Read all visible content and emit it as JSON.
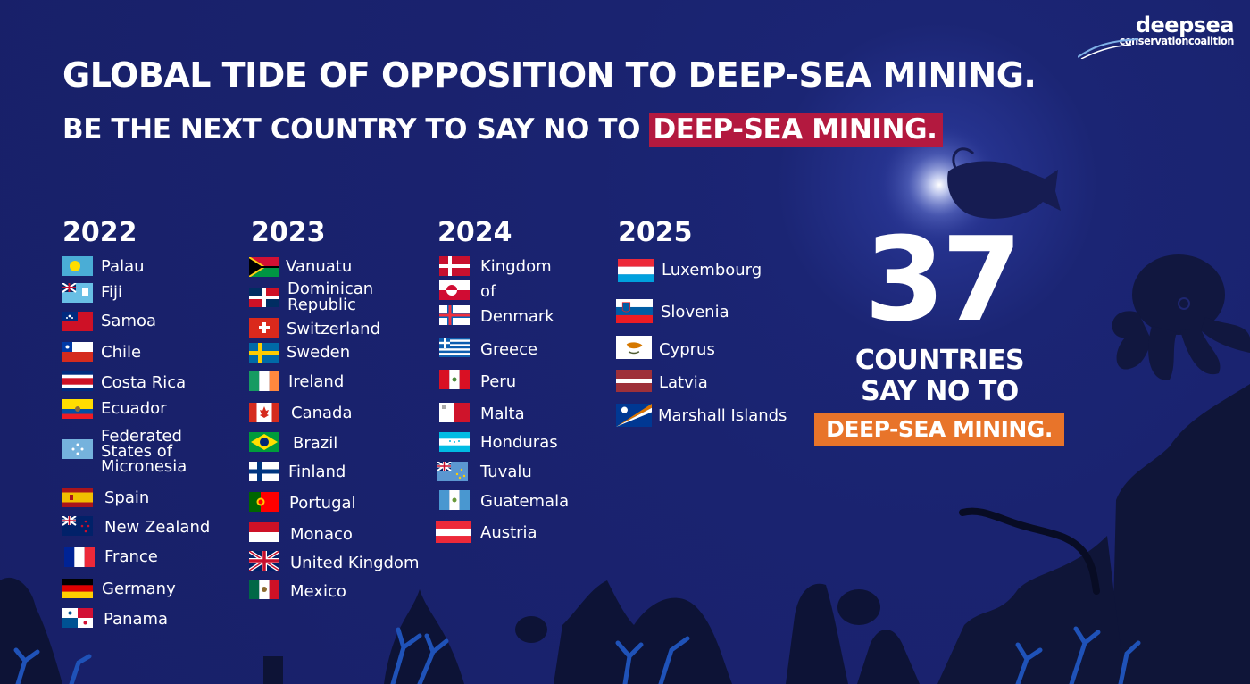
{
  "logo": {
    "line1": "deepsea",
    "line2": "conservationcoalition"
  },
  "title": "GLOBAL TIDE OF OPPOSITION TO DEEP-SEA MINING.",
  "subtitle": {
    "prefix": "BE THE NEXT COUNTRY TO SAY NO TO ",
    "highlight": "DEEP-SEA MINING."
  },
  "colors": {
    "background": "#1a2370",
    "highlight_red": "#b3193f",
    "highlight_orange": "#e8742a",
    "text": "#ffffff"
  },
  "years": [
    "2022",
    "2023",
    "2024",
    "2025"
  ],
  "countries": {
    "y2022": [
      {
        "label": "Palau",
        "flag": "palau-flag-icon"
      },
      {
        "label": "Fiji",
        "flag": "fiji-flag-icon"
      },
      {
        "label": "Samoa",
        "flag": "samoa-flag-icon"
      },
      {
        "label": "Chile",
        "flag": "chile-flag-icon"
      },
      {
        "label": "Costa Rica",
        "flag": "costa-rica-flag-icon"
      },
      {
        "label": "Ecuador",
        "flag": "ecuador-flag-icon"
      },
      {
        "label": "Federated\nStates of\nMicronesia",
        "flag": "micronesia-flag-icon"
      },
      {
        "label": "Spain",
        "flag": "spain-flag-icon"
      },
      {
        "label": "New Zealand",
        "flag": "new-zealand-flag-icon"
      },
      {
        "label": "France",
        "flag": "france-flag-icon"
      },
      {
        "label": "Germany",
        "flag": "germany-flag-icon"
      },
      {
        "label": "Panama",
        "flag": "panama-flag-icon"
      }
    ],
    "y2023": [
      {
        "label": "Vanuatu",
        "flag": "vanuatu-flag-icon"
      },
      {
        "label": "Dominican\nRepublic",
        "flag": "dominican-republic-flag-icon"
      },
      {
        "label": "Switzerland",
        "flag": "switzerland-flag-icon"
      },
      {
        "label": "Sweden",
        "flag": "sweden-flag-icon"
      },
      {
        "label": "Ireland",
        "flag": "ireland-flag-icon"
      },
      {
        "label": "Canada",
        "flag": "canada-flag-icon"
      },
      {
        "label": "Brazil",
        "flag": "brazil-flag-icon"
      },
      {
        "label": "Finland",
        "flag": "finland-flag-icon"
      },
      {
        "label": "Portugal",
        "flag": "portugal-flag-icon"
      },
      {
        "label": "Monaco",
        "flag": "monaco-flag-icon"
      },
      {
        "label": "United Kingdom",
        "flag": "united-kingdom-flag-icon"
      },
      {
        "label": "Mexico",
        "flag": "mexico-flag-icon"
      }
    ],
    "y2024": [
      {
        "label": "Kingdom\n\nof\n\nDenmark",
        "flag": "denmark-flags-icon"
      },
      {
        "label": "Greece",
        "flag": "greece-flag-icon"
      },
      {
        "label": "Peru",
        "flag": "peru-flag-icon"
      },
      {
        "label": "Malta",
        "flag": "malta-flag-icon"
      },
      {
        "label": "Honduras",
        "flag": "honduras-flag-icon"
      },
      {
        "label": "Tuvalu",
        "flag": "tuvalu-flag-icon"
      },
      {
        "label": "Guatemala",
        "flag": "guatemala-flag-icon"
      },
      {
        "label": "Austria",
        "flag": "austria-flag-icon"
      }
    ],
    "y2025": [
      {
        "label": "Luxembourg",
        "flag": "luxembourg-flag-icon"
      },
      {
        "label": "Slovenia",
        "flag": "slovenia-flag-icon"
      },
      {
        "label": "Cyprus",
        "flag": "cyprus-flag-icon"
      },
      {
        "label": "Latvia",
        "flag": "latvia-flag-icon"
      },
      {
        "label": "Marshall Islands",
        "flag": "marshall-islands-flag-icon"
      }
    ]
  },
  "count": {
    "number": "37",
    "line1": "COUNTRIES",
    "line2": "SAY NO TO",
    "line3": "DEEP-SEA MINING."
  }
}
